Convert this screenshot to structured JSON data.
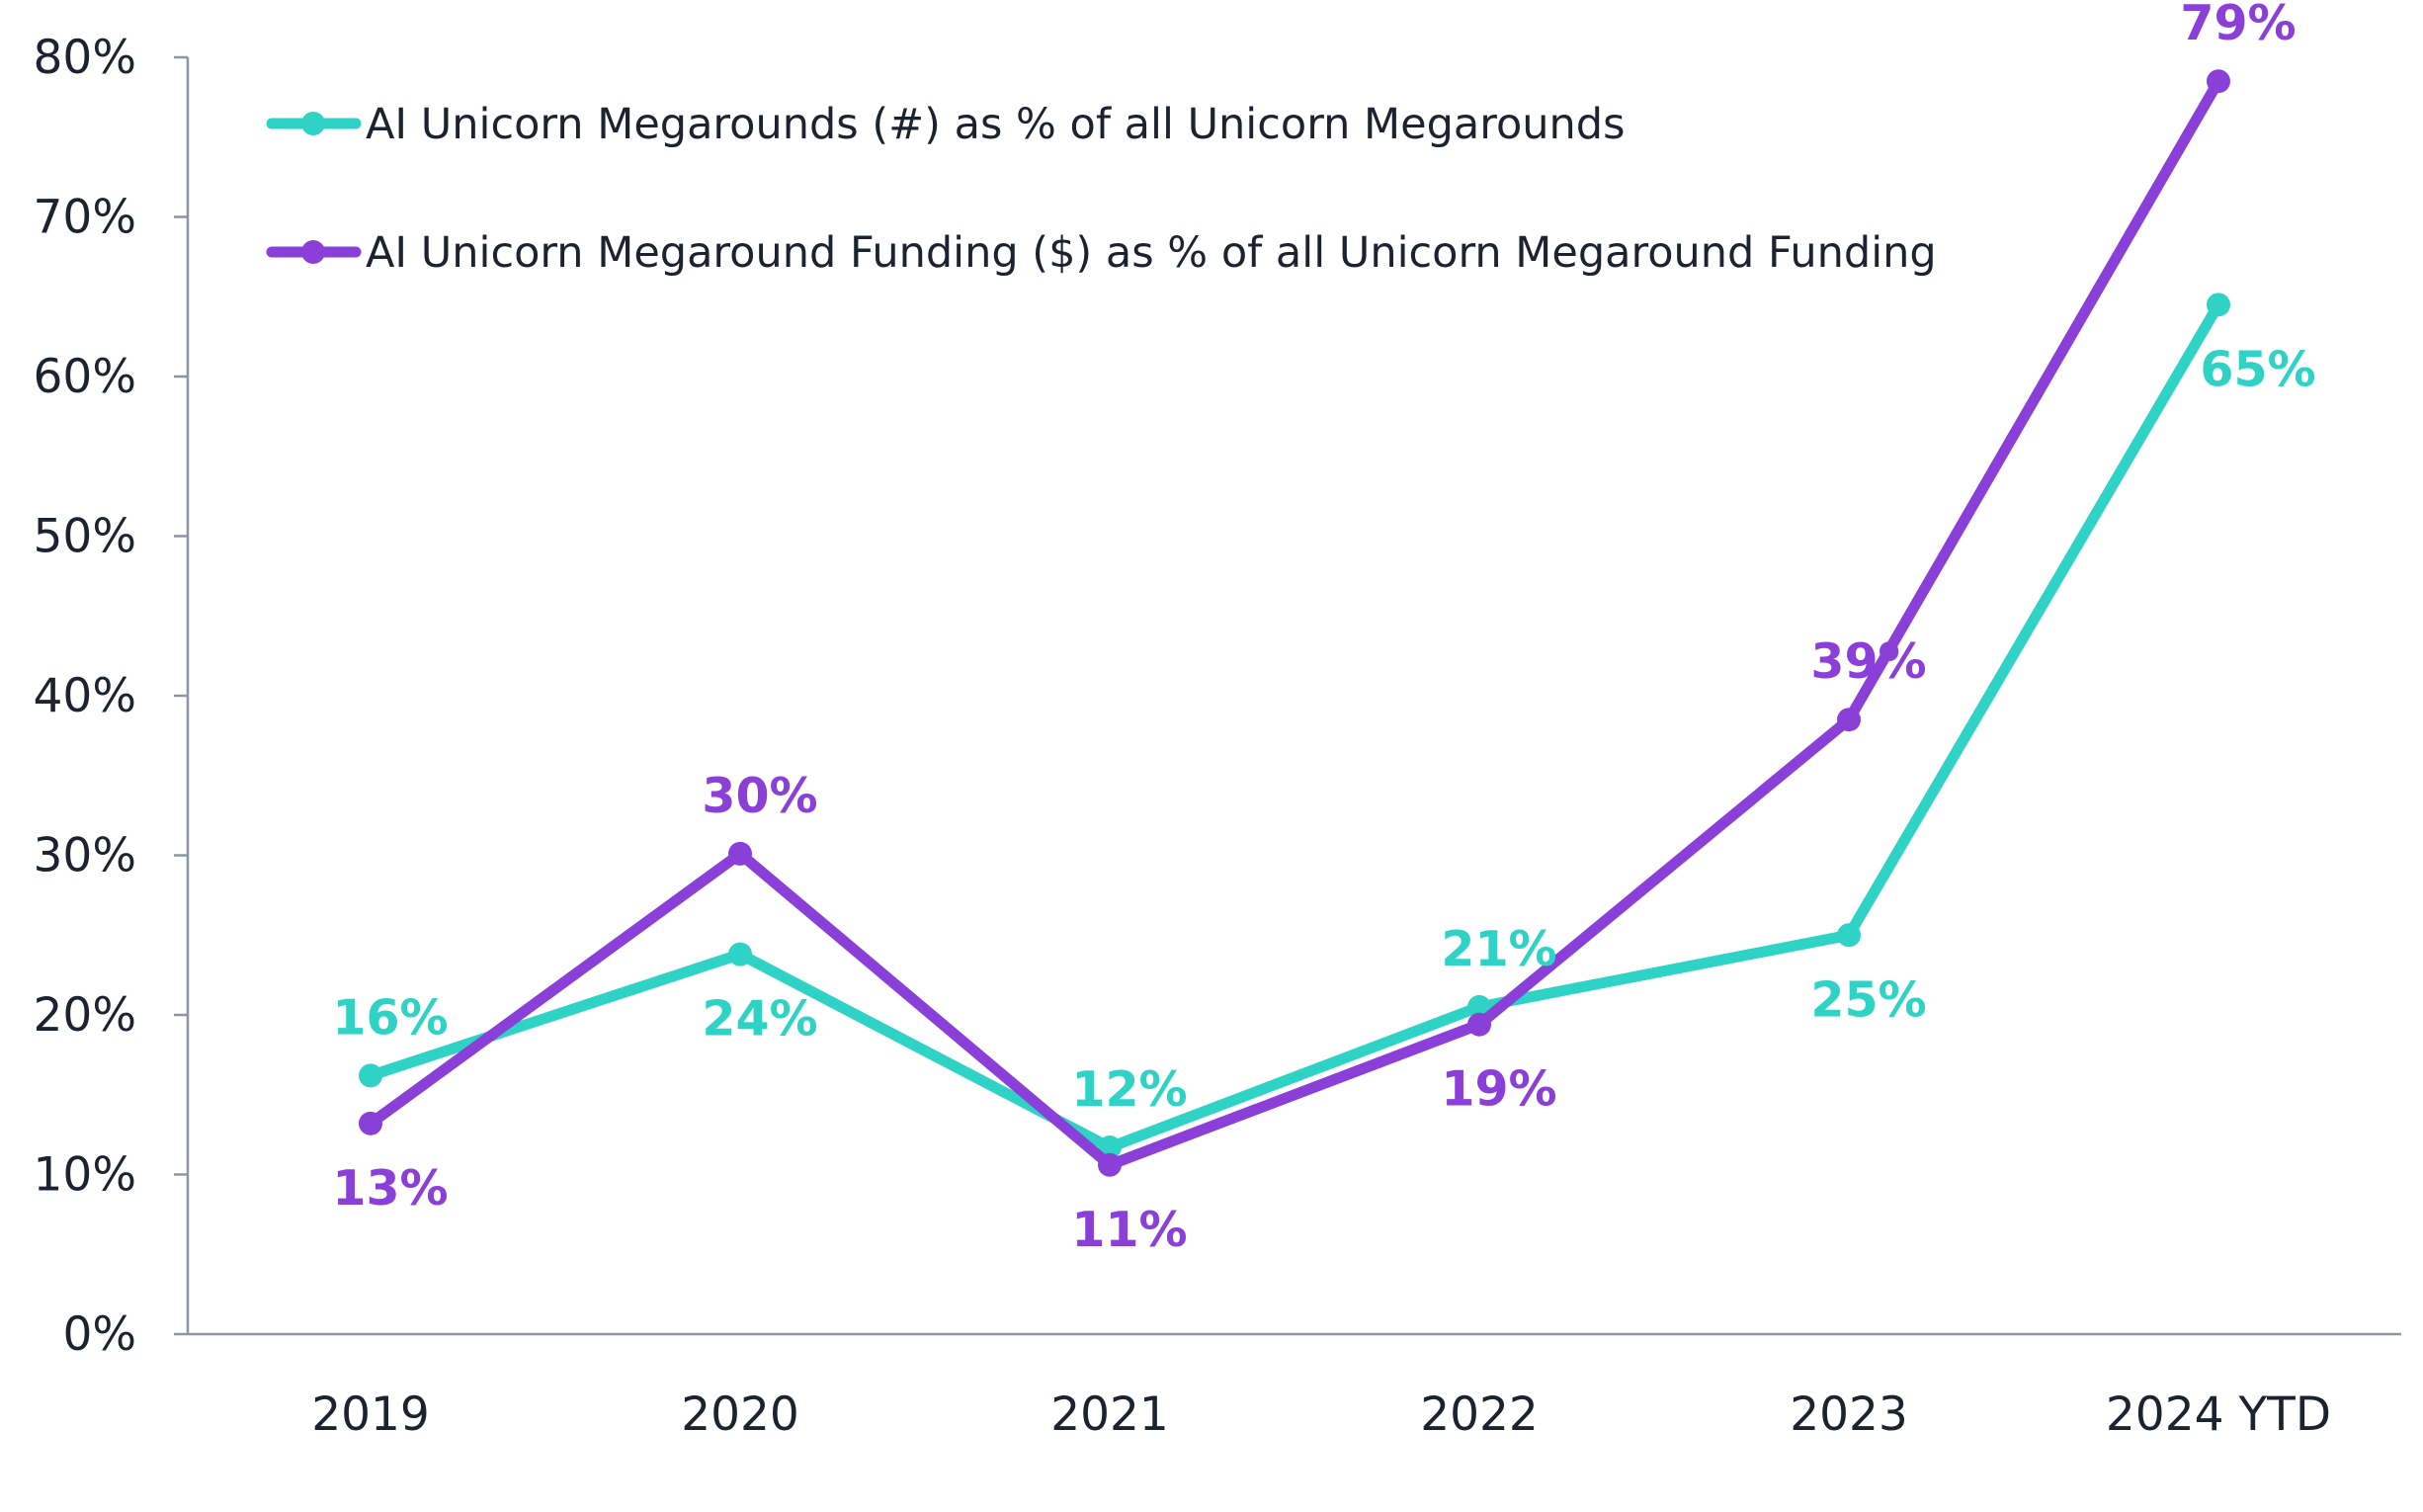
{
  "chart_data": {
    "type": "line",
    "title": "",
    "xlabel": "",
    "ylabel": "",
    "categories": [
      "2019",
      "2020",
      "2021",
      "2022",
      "2023",
      "2024 YTD"
    ],
    "ylim": [
      0,
      80
    ],
    "y_ticks": [
      0,
      10,
      20,
      30,
      40,
      50,
      60,
      70,
      80
    ],
    "y_tick_labels": [
      "0%",
      "10%",
      "20%",
      "30%",
      "40%",
      "50%",
      "60%",
      "70%",
      "80%"
    ],
    "grid": false,
    "legend_position": "top-left",
    "series": [
      {
        "name": "AI Unicorn Megarounds (#) as % of all Unicorn Megarounds",
        "color": "#2ed3c6",
        "values": [
          16.2,
          23.8,
          11.7,
          20.5,
          25.0,
          64.5
        ],
        "labels": [
          "16%",
          "24%",
          "12%",
          "21%",
          "25%",
          "65%"
        ],
        "label_positions": [
          "above",
          "below",
          "above",
          "above",
          "below",
          "below"
        ]
      },
      {
        "name": "AI Unicorn Megaround Funding ($) as % of all Unicorn Megaround Funding",
        "color": "#8b3fd9",
        "values": [
          13.2,
          30.1,
          10.6,
          19.4,
          38.5,
          78.5
        ],
        "labels": [
          "13%",
          "30%",
          "11%",
          "19%",
          "39%",
          "79%"
        ],
        "label_positions": [
          "below",
          "above",
          "below",
          "below",
          "above",
          "above"
        ]
      }
    ]
  }
}
